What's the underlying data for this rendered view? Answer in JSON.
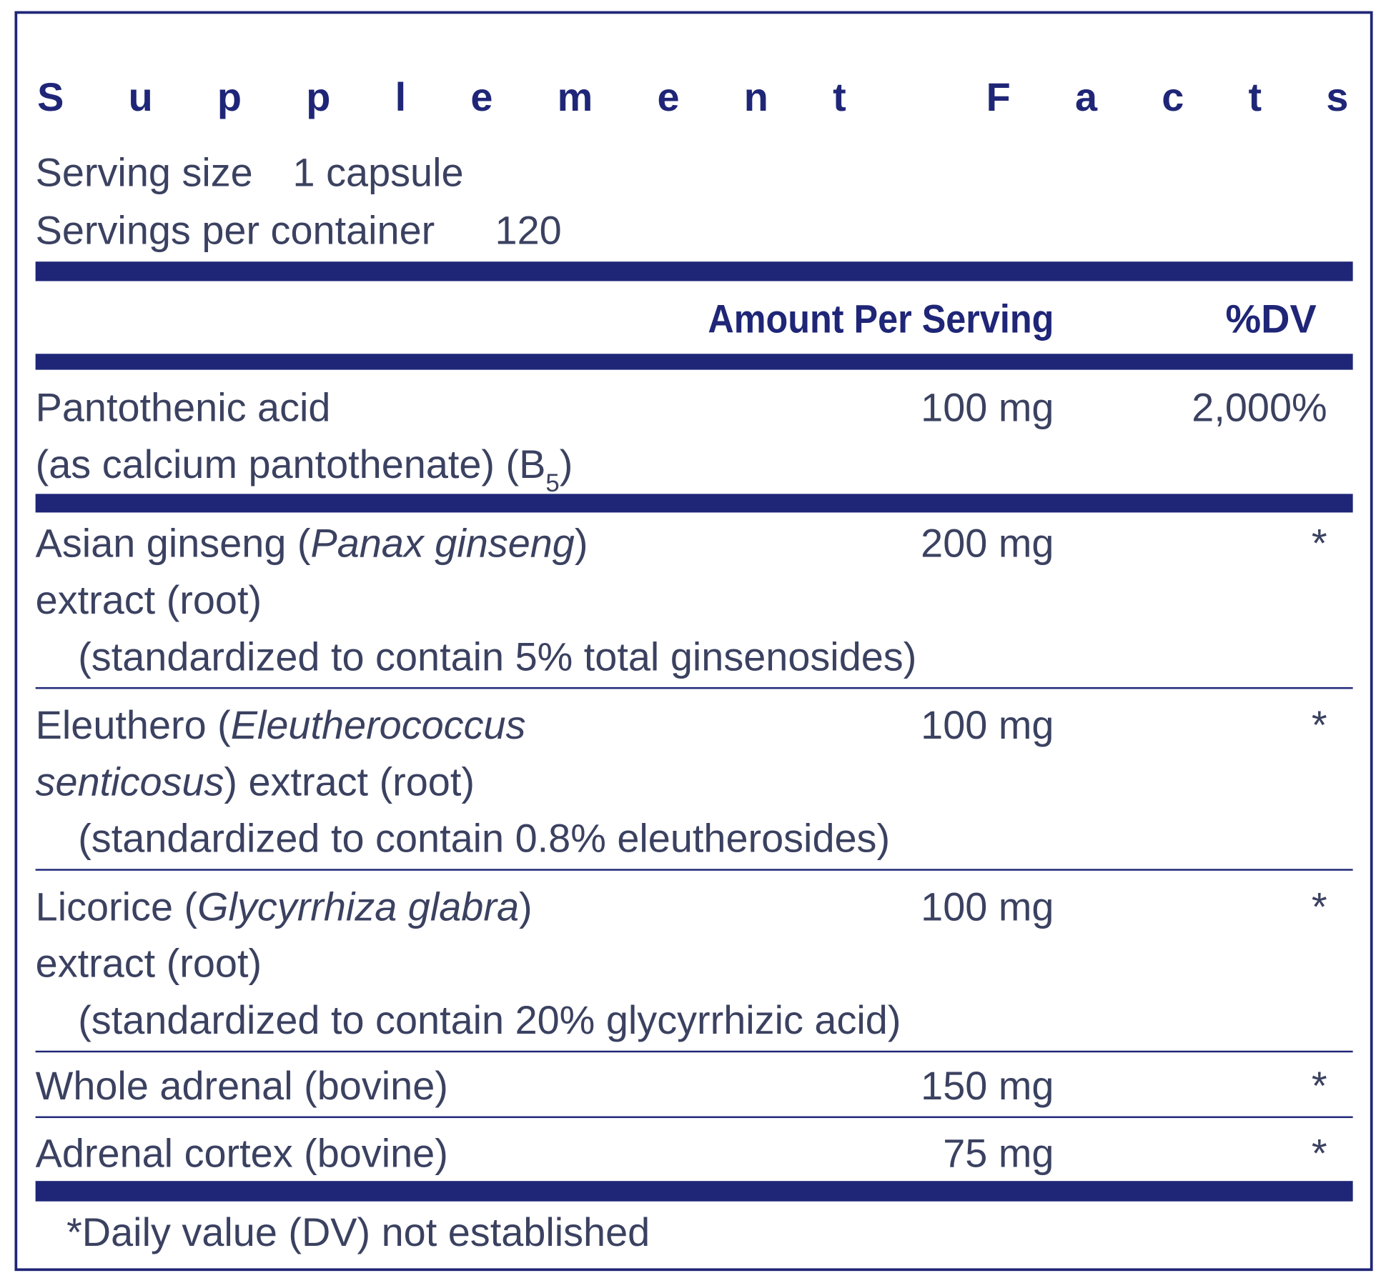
{
  "title": "Supplement Facts",
  "serving": {
    "size_label": "Serving size",
    "size": "1 capsule",
    "per_container_label": "Servings per container",
    "per_container": "120"
  },
  "header": {
    "amount": "Amount Per Serving",
    "dv": "%DV"
  },
  "rows": [
    {
      "lines": [
        [
          {
            "text": "Pantothenic acid"
          }
        ],
        [
          {
            "text": "(as calcium pantothenate) (B"
          },
          {
            "text": "5",
            "style": "sub"
          },
          {
            "text": ")"
          }
        ]
      ],
      "amount": "100 mg",
      "dv": "2,000%"
    },
    {
      "lines": [
        [
          {
            "text": "Asian ginseng ("
          },
          {
            "text": "Panax ginseng",
            "style": "italic"
          },
          {
            "text": ")"
          }
        ],
        [
          {
            "text": "extract (root)"
          }
        ]
      ],
      "note": "(standardized to contain 5% total ginsenosides)",
      "amount": "200 mg",
      "dv": "*"
    },
    {
      "lines": [
        [
          {
            "text": "Eleuthero ("
          },
          {
            "text": "Eleutherococcus",
            "style": "italic"
          }
        ],
        [
          {
            "text": "senticosus",
            "style": "italic"
          },
          {
            "text": ") extract (root)"
          }
        ]
      ],
      "note": "(standardized to contain 0.8% eleutherosides)",
      "amount": "100 mg",
      "dv": "*"
    },
    {
      "lines": [
        [
          {
            "text": "Licorice ("
          },
          {
            "text": "Glycyrrhiza glabra",
            "style": "italic"
          },
          {
            "text": ")"
          }
        ],
        [
          {
            "text": "extract (root)"
          }
        ]
      ],
      "note": "(standardized to contain 20% glycyrrhizic acid)",
      "amount": "100 mg",
      "dv": "*"
    },
    {
      "lines": [
        [
          {
            "text": "Whole adrenal (bovine)"
          }
        ]
      ],
      "amount": "150 mg",
      "dv": "*"
    },
    {
      "lines": [
        [
          {
            "text": "Adrenal cortex (bovine)"
          }
        ]
      ],
      "amount": "75 mg",
      "dv": "*"
    }
  ],
  "footnote": "*Daily value (DV) not established"
}
